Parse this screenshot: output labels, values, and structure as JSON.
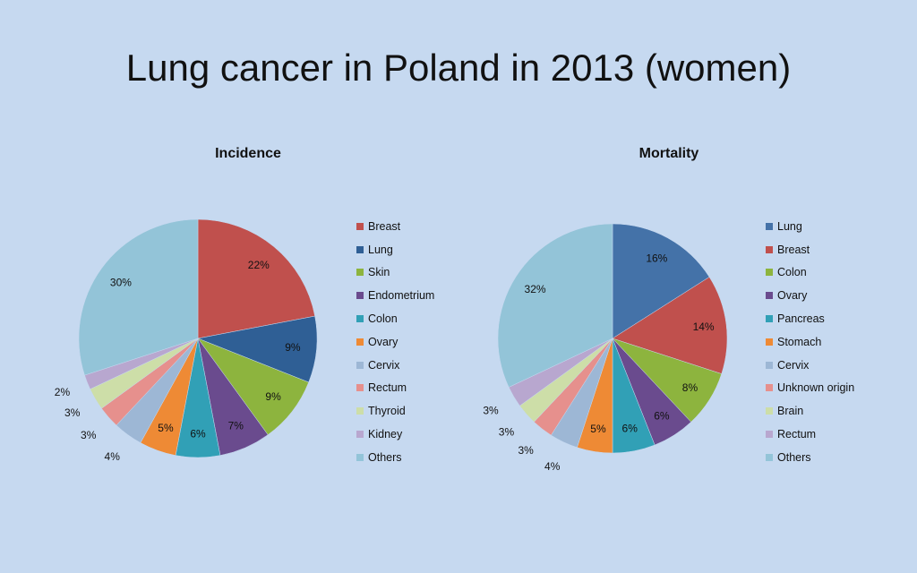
{
  "slide": {
    "title": "Lung cancer in Poland in 2013 (women)"
  },
  "colors": {
    "Breast": "#c0504d",
    "Lung": "#4f81bd",
    "Lung_incidence": "#375f91",
    "Skin": "#9bbb59",
    "Colon": "#8db43e",
    "Endometrium": "#8064a2",
    "Colon_incidence": "#4bacc6",
    "Ovary": "#f79646",
    "Cervix": "#9db7d5",
    "Rectum": "#e6908d",
    "Thyroid": "#cddea8",
    "Kidney": "#b8a7cf",
    "Others": "#93c4d8",
    "Pancreas": "#4bacc6",
    "Stomach": "#f79646",
    "Unknown origin": "#e6908d",
    "Brain": "#cddea8"
  },
  "chart_data": [
    {
      "type": "pie",
      "title": "Incidence",
      "categories": [
        "Breast",
        "Lung",
        "Skin",
        "Endometrium",
        "Colon",
        "Ovary",
        "Cervix",
        "Rectum",
        "Thyroid",
        "Kidney",
        "Others"
      ],
      "values": [
        22,
        9,
        9,
        7,
        6,
        5,
        4,
        3,
        3,
        2,
        30
      ],
      "labels": [
        "22%",
        "9%",
        "9%",
        "7%",
        "6%",
        "5%",
        "4%",
        "3%",
        "3%",
        "2%",
        "30%"
      ],
      "colors": [
        "#c0504d",
        "#2f5f95",
        "#8db43e",
        "#6a4b8e",
        "#31a0b6",
        "#ee8a35",
        "#9db7d5",
        "#e6908d",
        "#cddea8",
        "#b8a7cf",
        "#93c4d8"
      ],
      "legend": "right"
    },
    {
      "type": "pie",
      "title": "Mortality",
      "categories": [
        "Lung",
        "Breast",
        "Colon",
        "Ovary",
        "Pancreas",
        "Stomach",
        "Cervix",
        "Unknown origin",
        "Brain",
        "Rectum",
        "Others"
      ],
      "values": [
        16,
        14,
        8,
        6,
        6,
        5,
        4,
        3,
        3,
        3,
        32
      ],
      "labels": [
        "16%",
        "14%",
        "8%",
        "6%",
        "6%",
        "5%",
        "4%",
        "3%",
        "3%",
        "3%",
        "32%"
      ],
      "colors": [
        "#4472a8",
        "#c0504d",
        "#8db43e",
        "#6a4b8e",
        "#31a0b6",
        "#ee8a35",
        "#9db7d5",
        "#e6908d",
        "#cddea8",
        "#b8a7cf",
        "#93c4d8"
      ],
      "legend": "right"
    }
  ]
}
